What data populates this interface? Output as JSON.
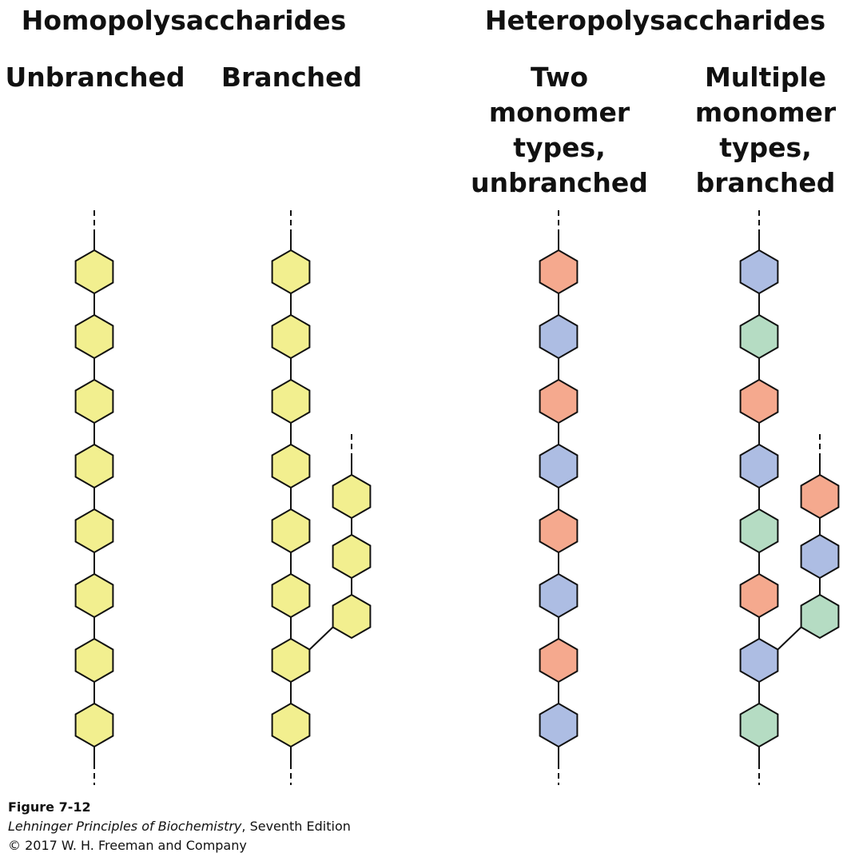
{
  "headings": {
    "homo": "Homopolysaccharides",
    "hetero": "Heteropolysaccharides"
  },
  "columns": [
    {
      "label_lines": [
        "Unbranched"
      ]
    },
    {
      "label_lines": [
        "Branched"
      ]
    },
    {
      "label_lines": [
        "Two",
        "monomer",
        "types,",
        "unbranched"
      ]
    },
    {
      "label_lines": [
        "Multiple",
        "monomer",
        "types,",
        "branched"
      ]
    }
  ],
  "colors": {
    "yellow": "#f2ef8f",
    "salmon": "#f5a98e",
    "blue": "#adbde3",
    "green": "#b5dcc3",
    "stroke": "#111111"
  },
  "chains": [
    {
      "id": "unbranched",
      "main": [
        "yellow",
        "yellow",
        "yellow",
        "yellow",
        "yellow",
        "yellow",
        "yellow",
        "yellow"
      ]
    },
    {
      "id": "branched",
      "main": [
        "yellow",
        "yellow",
        "yellow",
        "yellow",
        "yellow",
        "yellow",
        "yellow",
        "yellow"
      ],
      "branch": {
        "attach_index": 6,
        "units": [
          "yellow",
          "yellow",
          "yellow"
        ]
      }
    },
    {
      "id": "two-types",
      "main": [
        "salmon",
        "blue",
        "salmon",
        "blue",
        "salmon",
        "blue",
        "salmon",
        "blue"
      ]
    },
    {
      "id": "multiple-types",
      "main": [
        "blue",
        "green",
        "salmon",
        "blue",
        "green",
        "salmon",
        "blue",
        "green"
      ],
      "branch": {
        "attach_index": 6,
        "units": [
          "salmon",
          "blue",
          "green"
        ]
      }
    }
  ],
  "caption": {
    "figure": "Figure 7-12",
    "book_title": "Lehninger Principles of Biochemistry",
    "edition": ", Seventh Edition",
    "copyright": "© 2017 W. H. Freeman and Company"
  }
}
